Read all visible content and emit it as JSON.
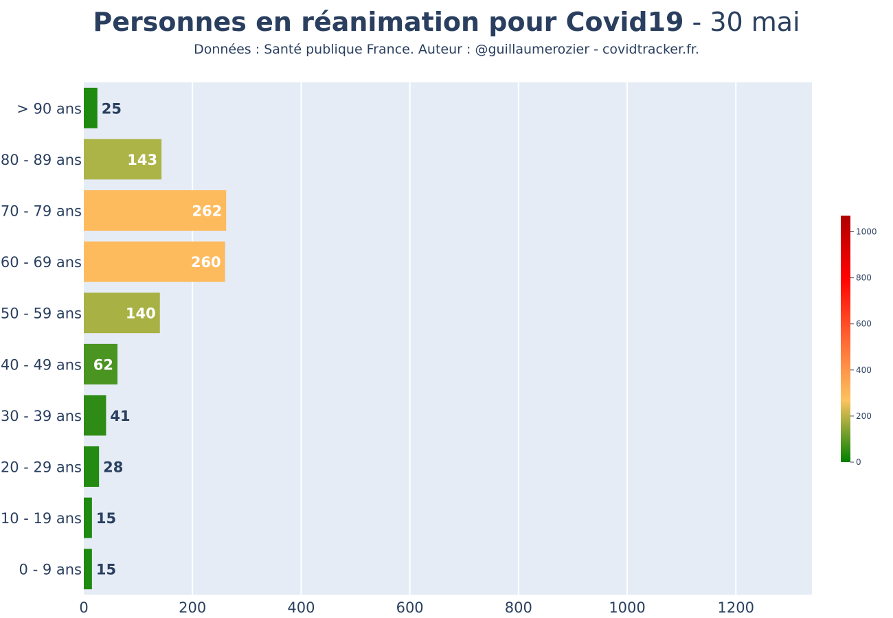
{
  "title": {
    "main": "Personnes en réanimation pour Covid19",
    "date": " - 30 mai"
  },
  "subtitle": "Données : Santé publique France. Auteur : @guillaumerozier - covidtracker.fr.",
  "chart_data": {
    "type": "bar",
    "orientation": "horizontal",
    "categories": [
      "0 - 9 ans",
      "10 - 19 ans",
      "20 - 29 ans",
      "30 - 39 ans",
      "40 - 49 ans",
      "50 - 59 ans",
      "60 - 69 ans",
      "70 - 79 ans",
      "80 - 89 ans",
      "> 90 ans"
    ],
    "values": [
      15,
      15,
      28,
      41,
      62,
      140,
      260,
      262,
      143,
      25
    ],
    "xlim": [
      0,
      1340
    ],
    "xticks": [
      0,
      200,
      400,
      600,
      800,
      1000,
      1200
    ],
    "grid": true,
    "plot_background": "#e5ecf6",
    "bar_colors": [
      "#1e8a10",
      "#1e8a10",
      "#238b12",
      "#2e8c16",
      "#4a9421",
      "#a8b244",
      "#fdbb5e",
      "#fdbb5e",
      "#adb447",
      "#1e8a10"
    ],
    "colorbar": {
      "range": [
        0,
        1070
      ],
      "ticks": [
        0,
        200,
        400,
        600,
        800,
        1000
      ],
      "colors": [
        "#008000",
        "#fcc35f",
        "#ff6633",
        "#ff0000",
        "#b00000"
      ],
      "placement": "right"
    }
  }
}
